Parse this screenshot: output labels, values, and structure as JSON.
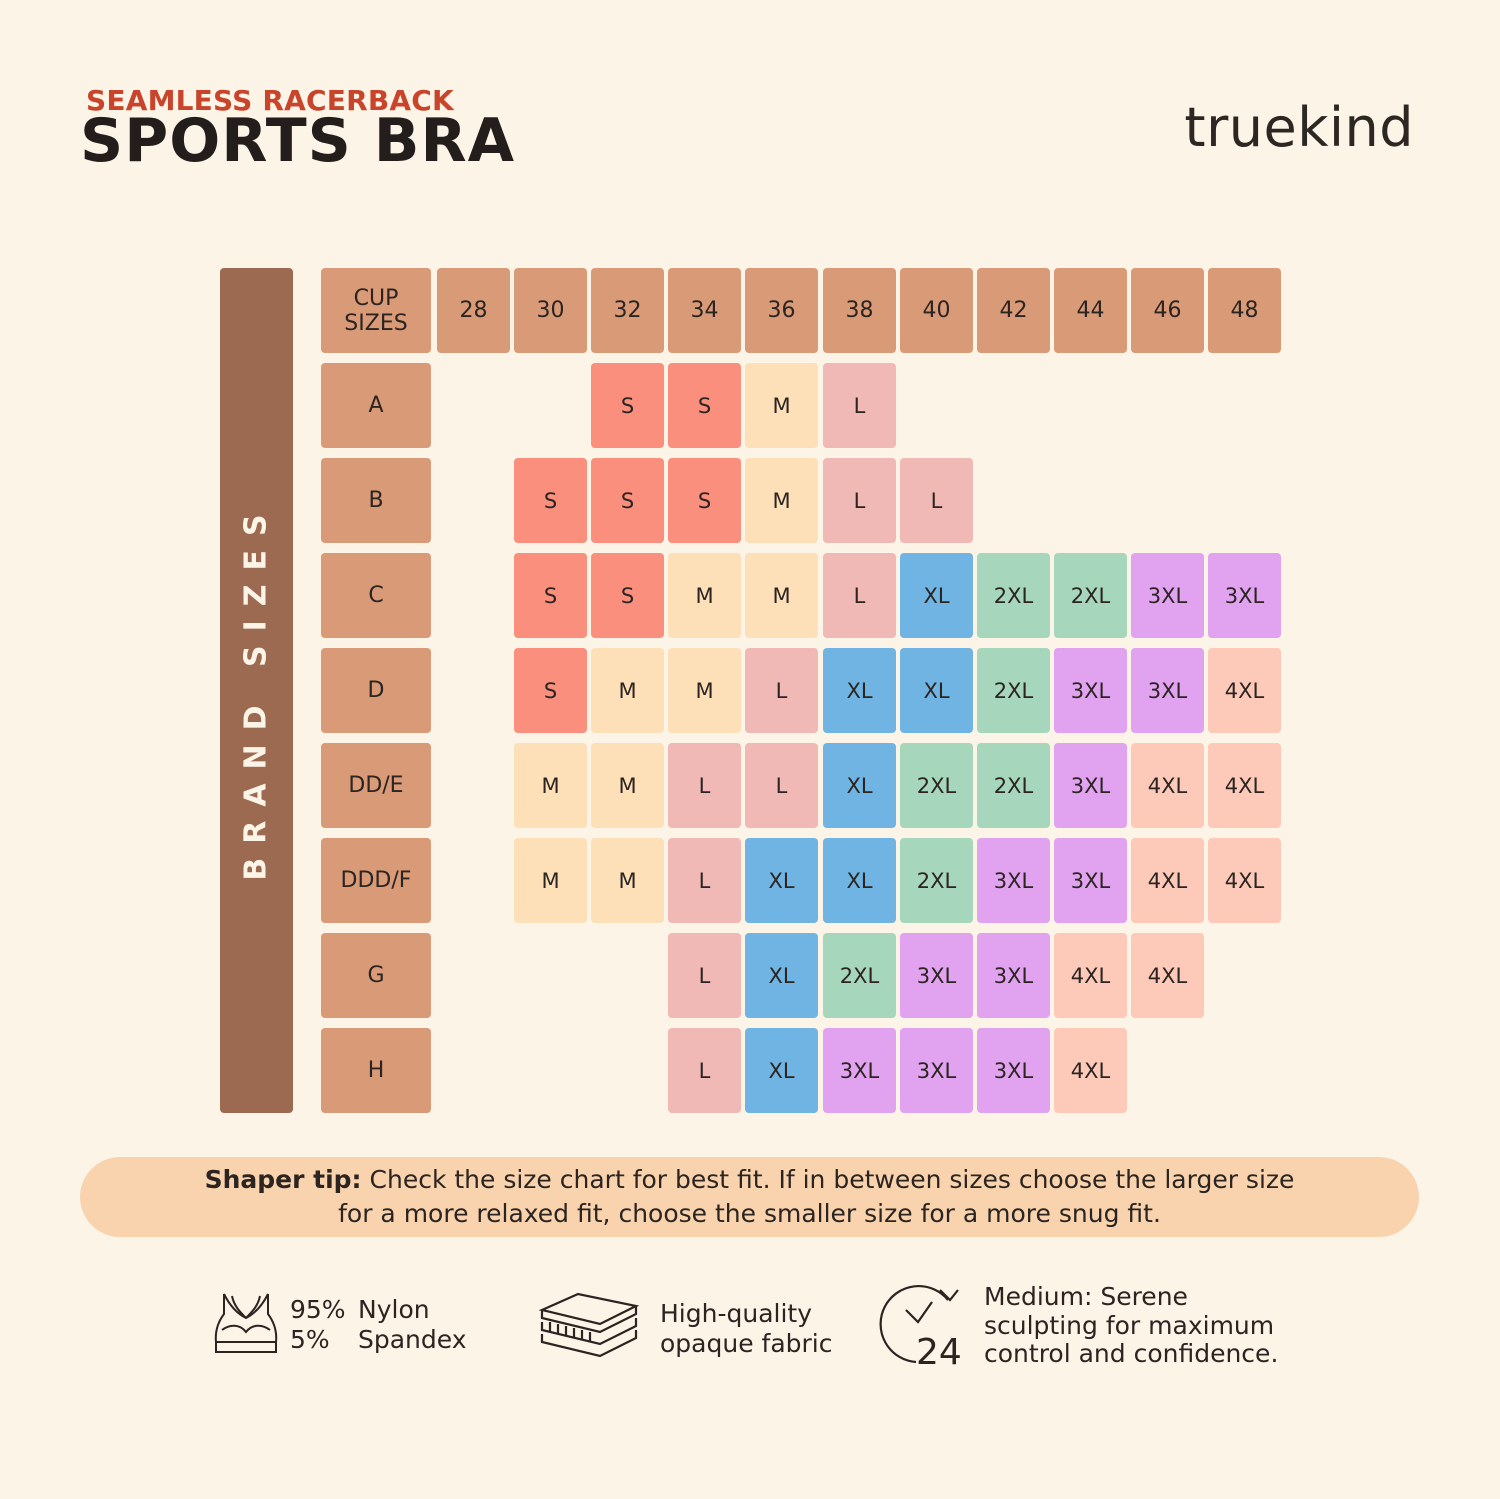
{
  "header": {
    "subtitle": "SEAMLESS RACERBACK",
    "title": "SPORTS BRA",
    "brand": "truekind"
  },
  "side_label": "BRAND SIZES",
  "colors": {
    "S": "#fa8f7d",
    "M": "#fde0b8",
    "L": "#f1b9b6",
    "XL": "#6fb4e2",
    "2XL": "#a6d6bc",
    "3XL": "#e1a2f0",
    "4XL": "#fdcab9",
    "header": "#d99a78",
    "sidebar": "#9b6a51"
  },
  "chart_data": {
    "type": "table",
    "corner_label": [
      "CUP",
      "SIZES"
    ],
    "columns": [
      "28",
      "30",
      "32",
      "34",
      "36",
      "38",
      "40",
      "42",
      "44",
      "46",
      "48"
    ],
    "rows": [
      {
        "label": "A",
        "cells": [
          null,
          null,
          "S",
          "S",
          "M",
          "L",
          null,
          null,
          null,
          null,
          null
        ]
      },
      {
        "label": "B",
        "cells": [
          null,
          "S",
          "S",
          "S",
          "M",
          "L",
          "L",
          null,
          null,
          null,
          null
        ]
      },
      {
        "label": "C",
        "cells": [
          null,
          "S",
          "S",
          "M",
          "M",
          "L",
          "XL",
          "2XL",
          "2XL",
          "3XL",
          "3XL"
        ]
      },
      {
        "label": "D",
        "cells": [
          null,
          "S",
          "M",
          "M",
          "L",
          "XL",
          "XL",
          "2XL",
          "3XL",
          "3XL",
          "4XL"
        ]
      },
      {
        "label": "DD/E",
        "cells": [
          null,
          "M",
          "M",
          "L",
          "L",
          "XL",
          "2XL",
          "2XL",
          "3XL",
          "4XL",
          "4XL"
        ]
      },
      {
        "label": "DDD/F",
        "cells": [
          null,
          "M",
          "M",
          "L",
          "XL",
          "XL",
          "2XL",
          "3XL",
          "3XL",
          "4XL",
          "4XL"
        ]
      },
      {
        "label": "G",
        "cells": [
          null,
          null,
          null,
          "L",
          "XL",
          "2XL",
          "3XL",
          "3XL",
          "4XL",
          "4XL",
          null
        ]
      },
      {
        "label": "H",
        "cells": [
          null,
          null,
          null,
          "L",
          "XL",
          "3XL",
          "3XL",
          "3XL",
          "4XL",
          null,
          null
        ]
      }
    ]
  },
  "tip": {
    "label": "Shaper tip:",
    "line1": "Check the size chart for best fit. If in between sizes choose the larger size",
    "line2": "for a more relaxed fit, choose the smaller size for a more snug fit."
  },
  "features": {
    "material": {
      "nylon_pct": "95%",
      "nylon": "Nylon",
      "spandex_pct": "5%",
      "spandex": "Spandex",
      "icon": "sports-bra-icon"
    },
    "fabric": {
      "line1": "High-quality",
      "line2": "opaque fabric",
      "icon": "fabric-layers-icon"
    },
    "support": {
      "line1": "Medium: Serene",
      "line2": "sculpting for maximum",
      "line3": "control and confidence.",
      "icon": "clock-24-icon",
      "icon_text": "24"
    }
  }
}
